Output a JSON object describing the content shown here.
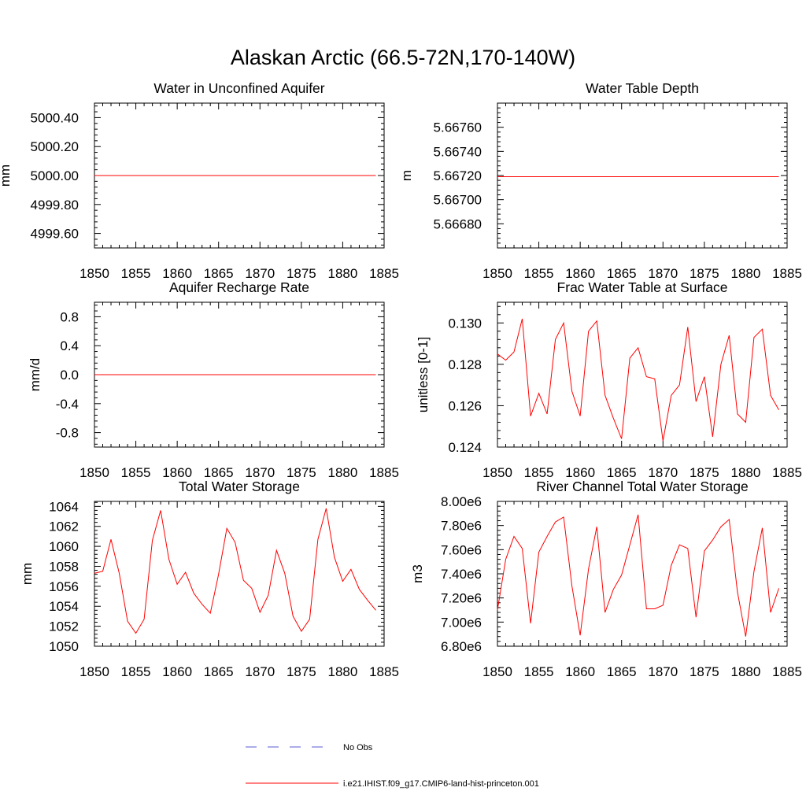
{
  "figure": {
    "title": "Alaskan Arctic (66.5-72N,170-140W)",
    "legend": [
      {
        "label": "No Obs",
        "color": "#5a5ad6",
        "style": "dashed"
      },
      {
        "label": "i.e21.IHIST.f09_g17.CMIP6-land-hist-princeton.001",
        "color": "#ff0000",
        "style": "solid"
      }
    ]
  },
  "chart_data": [
    {
      "type": "line",
      "title": "Water in Unconfined Aquifer",
      "ylabel": "mm",
      "xlim": [
        1850,
        1885
      ],
      "ylim": [
        4999.5,
        5000.5
      ],
      "xticks": [
        1850,
        1855,
        1860,
        1865,
        1870,
        1875,
        1880,
        1885
      ],
      "xticklabels": [
        "1850",
        "1855",
        "1860",
        "1865",
        "1870",
        "1875",
        "1880",
        "1885"
      ],
      "yticks": [
        4999.6,
        4999.8,
        5000.0,
        5000.2,
        5000.4
      ],
      "yticklabels": [
        "4999.60",
        "4999.80",
        "5000.00",
        "5000.20",
        "5000.40"
      ],
      "series": [
        {
          "color": "#ff0000",
          "x": [
            1850,
            1884
          ],
          "values": [
            5000.0,
            5000.0
          ]
        }
      ]
    },
    {
      "type": "line",
      "title": "Water Table Depth",
      "ylabel": "m",
      "xlim": [
        1850,
        1885
      ],
      "ylim": [
        5.6666,
        5.6678
      ],
      "xticks": [
        1850,
        1855,
        1860,
        1865,
        1870,
        1875,
        1880,
        1885
      ],
      "xticklabels": [
        "1850",
        "1855",
        "1860",
        "1865",
        "1870",
        "1875",
        "1880",
        "1885"
      ],
      "yticks": [
        5.6668,
        5.667,
        5.6672,
        5.6674,
        5.6676
      ],
      "yticklabels": [
        "5.66680",
        "5.66700",
        "5.66720",
        "5.66740",
        "5.66760"
      ],
      "series": [
        {
          "color": "#ff0000",
          "x": [
            1850,
            1884
          ],
          "values": [
            5.66719,
            5.66719
          ]
        }
      ]
    },
    {
      "type": "line",
      "title": "Aquifer Recharge Rate",
      "ylabel": "mm/d",
      "xlim": [
        1850,
        1885
      ],
      "ylim": [
        -1.0,
        1.0
      ],
      "xticks": [
        1850,
        1855,
        1860,
        1865,
        1870,
        1875,
        1880,
        1885
      ],
      "xticklabels": [
        "1850",
        "1855",
        "1860",
        "1865",
        "1870",
        "1875",
        "1880",
        "1885"
      ],
      "yticks": [
        -0.8,
        -0.4,
        0.0,
        0.4,
        0.8
      ],
      "yticklabels": [
        "-0.8",
        "-0.4",
        "0.0",
        "0.4",
        "0.8"
      ],
      "series": [
        {
          "color": "#ff0000",
          "x": [
            1850,
            1884
          ],
          "values": [
            0.0,
            0.0
          ]
        }
      ]
    },
    {
      "type": "line",
      "title": "Frac Water Table at Surface",
      "ylabel": "unitless [0-1]",
      "xlim": [
        1850,
        1885
      ],
      "ylim": [
        0.124,
        0.131
      ],
      "xticks": [
        1850,
        1855,
        1860,
        1865,
        1870,
        1875,
        1880,
        1885
      ],
      "xticklabels": [
        "1850",
        "1855",
        "1860",
        "1865",
        "1870",
        "1875",
        "1880",
        "1885"
      ],
      "yticks": [
        0.124,
        0.126,
        0.128,
        0.13
      ],
      "yticklabels": [
        "0.124",
        "0.126",
        "0.128",
        "0.130"
      ],
      "series": [
        {
          "color": "#ff0000",
          "x": [
            1850,
            1851,
            1852,
            1853,
            1854,
            1855,
            1856,
            1857,
            1858,
            1859,
            1860,
            1861,
            1862,
            1863,
            1864,
            1865,
            1866,
            1867,
            1868,
            1869,
            1870,
            1871,
            1872,
            1873,
            1874,
            1875,
            1876,
            1877,
            1878,
            1879,
            1880,
            1881,
            1882,
            1883,
            1884
          ],
          "values": [
            0.1285,
            0.1282,
            0.1286,
            0.1302,
            0.1255,
            0.1266,
            0.1256,
            0.1292,
            0.13,
            0.1267,
            0.1255,
            0.1296,
            0.1301,
            0.1265,
            0.1254,
            0.1244,
            0.1283,
            0.1288,
            0.1274,
            0.1273,
            0.1243,
            0.1265,
            0.127,
            0.1298,
            0.1262,
            0.1274,
            0.1245,
            0.128,
            0.1294,
            0.1256,
            0.1252,
            0.1293,
            0.1297,
            0.1265,
            0.1258
          ]
        }
      ]
    },
    {
      "type": "line",
      "title": "Total Water Storage",
      "ylabel": "mm",
      "xlim": [
        1850,
        1885
      ],
      "ylim": [
        1050,
        1064.5
      ],
      "xticks": [
        1850,
        1855,
        1860,
        1865,
        1870,
        1875,
        1880,
        1885
      ],
      "xticklabels": [
        "1850",
        "1855",
        "1860",
        "1865",
        "1870",
        "1875",
        "1880",
        "1885"
      ],
      "yticks": [
        1050,
        1052,
        1054,
        1056,
        1058,
        1060,
        1062,
        1064
      ],
      "yticklabels": [
        "1050",
        "1052",
        "1054",
        "1056",
        "1058",
        "1060",
        "1062",
        "1064"
      ],
      "series": [
        {
          "color": "#ff0000",
          "x": [
            1850,
            1851,
            1852,
            1853,
            1854,
            1855,
            1856,
            1857,
            1858,
            1859,
            1860,
            1861,
            1862,
            1863,
            1864,
            1865,
            1866,
            1867,
            1868,
            1869,
            1870,
            1871,
            1872,
            1873,
            1874,
            1875,
            1876,
            1877,
            1878,
            1879,
            1880,
            1881,
            1882,
            1883,
            1884
          ],
          "values": [
            1057.3,
            1057.5,
            1060.7,
            1057.3,
            1052.5,
            1051.3,
            1052.7,
            1060.6,
            1063.6,
            1058.7,
            1056.2,
            1057.4,
            1055.3,
            1054.2,
            1053.3,
            1057.2,
            1061.8,
            1060.4,
            1056.6,
            1055.8,
            1053.4,
            1055.1,
            1059.6,
            1057.3,
            1053.0,
            1051.5,
            1052.7,
            1060.7,
            1063.8,
            1058.9,
            1056.5,
            1057.7,
            1055.7,
            1054.6,
            1053.6
          ]
        }
      ]
    },
    {
      "type": "line",
      "title": "River Channel Total Water Storage",
      "ylabel": "m3",
      "xlim": [
        1850,
        1885
      ],
      "ylim": [
        6800000.0,
        8000000.0
      ],
      "xticks": [
        1850,
        1855,
        1860,
        1865,
        1870,
        1875,
        1880,
        1885
      ],
      "xticklabels": [
        "1850",
        "1855",
        "1860",
        "1865",
        "1870",
        "1875",
        "1880",
        "1885"
      ],
      "yticks": [
        6800000.0,
        7000000.0,
        7200000.0,
        7400000.0,
        7600000.0,
        7800000.0,
        8000000.0
      ],
      "yticklabels": [
        "6.80e6",
        "7.00e6",
        "7.20e6",
        "7.40e6",
        "7.60e6",
        "7.80e6",
        "8.00e6"
      ],
      "series": [
        {
          "color": "#ff0000",
          "x": [
            1850,
            1851,
            1852,
            1853,
            1854,
            1855,
            1856,
            1857,
            1858,
            1859,
            1860,
            1861,
            1862,
            1863,
            1864,
            1865,
            1866,
            1867,
            1868,
            1869,
            1870,
            1871,
            1872,
            1873,
            1874,
            1875,
            1876,
            1877,
            1878,
            1879,
            1880,
            1881,
            1882,
            1883,
            1884
          ],
          "values": [
            7100000,
            7520000,
            7710000,
            7610000,
            6990000,
            7580000,
            7710000,
            7830000,
            7870000,
            7300000,
            6890000,
            7440000,
            7790000,
            7080000,
            7270000,
            7390000,
            7640000,
            7890000,
            7110000,
            7110000,
            7140000,
            7470000,
            7640000,
            7610000,
            7040000,
            7590000,
            7680000,
            7790000,
            7850000,
            7250000,
            6880000,
            7420000,
            7780000,
            7080000,
            7280000
          ]
        }
      ]
    }
  ]
}
